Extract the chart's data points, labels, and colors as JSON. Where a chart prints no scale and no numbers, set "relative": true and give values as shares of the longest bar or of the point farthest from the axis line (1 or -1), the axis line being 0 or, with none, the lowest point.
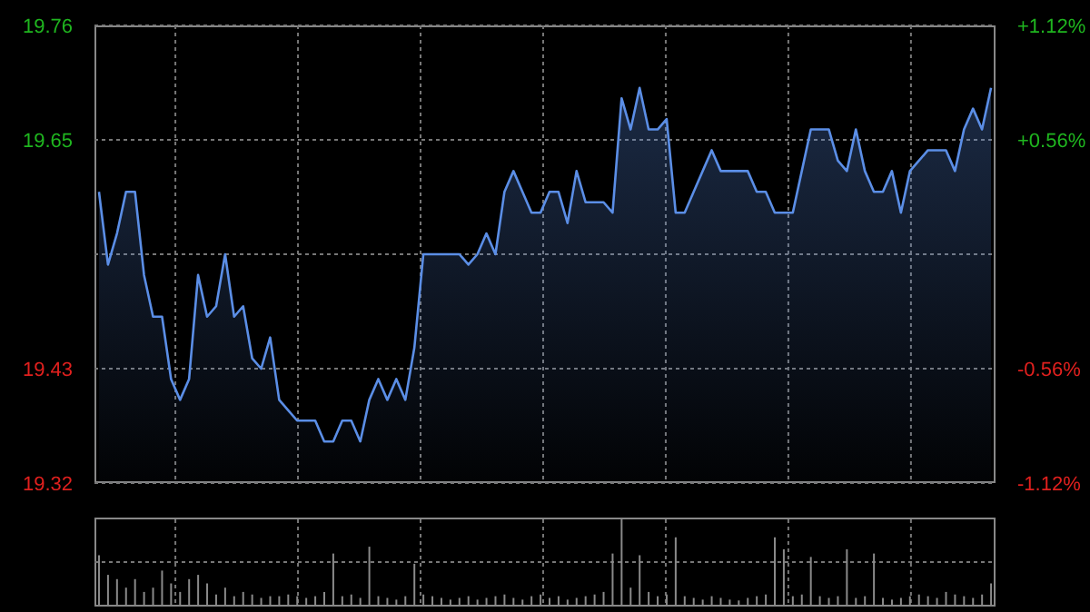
{
  "chart_data": [
    {
      "type": "area",
      "categories": [
        null,
        null,
        null,
        null,
        null,
        null,
        null,
        null,
        null,
        null,
        null,
        null,
        null,
        null,
        null,
        null,
        null,
        null,
        null,
        null,
        null,
        null,
        null,
        null,
        null,
        null,
        null,
        null,
        null,
        null,
        null,
        null,
        null,
        null,
        null,
        null,
        null,
        null,
        null,
        null,
        null,
        null,
        null,
        null,
        null,
        null,
        null,
        null,
        null,
        null,
        null,
        null,
        null,
        null,
        null,
        null,
        null,
        null,
        null,
        null,
        null,
        null,
        null,
        null,
        null,
        null,
        null,
        null,
        null,
        null,
        null,
        null,
        null,
        null,
        null,
        null,
        null,
        null,
        null,
        null,
        null,
        null,
        null,
        null,
        null,
        null,
        null,
        null,
        null,
        null,
        null,
        null,
        null,
        null,
        null,
        null,
        null,
        null,
        null,
        null
      ],
      "series": [
        {
          "color": "#5b8ee6",
          "values": [
            19.6,
            19.53,
            19.56,
            19.6,
            19.6,
            19.52,
            19.48,
            19.48,
            19.42,
            19.4,
            19.42,
            19.52,
            19.48,
            19.49,
            19.54,
            19.48,
            19.49,
            19.44,
            19.43,
            19.46,
            19.4,
            19.39,
            19.38,
            19.38,
            19.38,
            19.36,
            19.36,
            19.38,
            19.38,
            19.36,
            19.4,
            19.42,
            19.4,
            19.42,
            19.4,
            19.45,
            19.54,
            19.54,
            19.54,
            19.54,
            19.54,
            19.53,
            19.54,
            19.56,
            19.54,
            19.6,
            19.62,
            19.6,
            19.58,
            19.58,
            19.6,
            19.6,
            19.57,
            19.62,
            19.59,
            19.59,
            19.59,
            19.58,
            19.69,
            19.66,
            19.7,
            19.66,
            19.66,
            19.67,
            19.58,
            19.58,
            19.6,
            19.62,
            19.64,
            19.62,
            19.62,
            19.62,
            19.62,
            19.6,
            19.6,
            19.58,
            19.58,
            19.58,
            19.62,
            19.66,
            19.66,
            19.66,
            19.63,
            19.62,
            19.66,
            19.62,
            19.6,
            19.6,
            19.62,
            19.58,
            19.62,
            19.63,
            19.64,
            19.64,
            19.64,
            19.62,
            19.66,
            19.68,
            19.66,
            19.7
          ]
        }
      ],
      "ylim": [
        19.32,
        19.76
      ],
      "yticks": [
        19.32,
        19.43,
        {
          "value": 19.54,
          "label": null
        },
        19.65,
        19.76
      ],
      "y2lim": [
        -1.12,
        1.12
      ],
      "y2ticks": [
        {
          "value": -1.12,
          "label": "-1.12%"
        },
        {
          "value": -0.56,
          "label": "-0.56%"
        },
        {
          "value": 0,
          "label": null
        },
        {
          "value": 0.56,
          "label": "+0.56%"
        },
        {
          "value": 1.12,
          "label": "+1.12%"
        }
      ],
      "grid": true
    },
    {
      "type": "bar",
      "relative": true,
      "categories": [
        null,
        null,
        null,
        null,
        null,
        null,
        null,
        null,
        null,
        null,
        null,
        null,
        null,
        null,
        null,
        null,
        null,
        null,
        null,
        null,
        null,
        null,
        null,
        null,
        null,
        null,
        null,
        null,
        null,
        null,
        null,
        null,
        null,
        null,
        null,
        null,
        null,
        null,
        null,
        null,
        null,
        null,
        null,
        null,
        null,
        null,
        null,
        null,
        null,
        null,
        null,
        null,
        null,
        null,
        null,
        null,
        null,
        null,
        null,
        null,
        null,
        null,
        null,
        null,
        null,
        null,
        null,
        null,
        null,
        null,
        null,
        null,
        null,
        null,
        null,
        null,
        null,
        null,
        null,
        null,
        null,
        null,
        null,
        null,
        null,
        null,
        null,
        null,
        null,
        null,
        null,
        null,
        null,
        null,
        null,
        null,
        null,
        null,
        null,
        null
      ],
      "series": [
        {
          "color": "#8a8a8a",
          "values": [
            0.58,
            0.35,
            0.3,
            0.2,
            0.3,
            0.15,
            0.2,
            0.4,
            0.25,
            0.15,
            0.3,
            0.35,
            0.25,
            0.12,
            0.2,
            0.1,
            0.15,
            0.12,
            0.08,
            0.1,
            0.1,
            0.12,
            0.1,
            0.08,
            0.1,
            0.15,
            0.6,
            0.1,
            0.12,
            0.08,
            0.68,
            0.1,
            0.08,
            0.06,
            0.1,
            0.48,
            0.12,
            0.1,
            0.08,
            0.06,
            0.08,
            0.1,
            0.06,
            0.08,
            0.1,
            0.12,
            0.08,
            0.06,
            0.1,
            0.12,
            0.08,
            0.1,
            0.06,
            0.08,
            0.1,
            0.12,
            0.15,
            0.6,
            1,
            0.2,
            0.58,
            0.15,
            0.1,
            0.12,
            0.79,
            0.1,
            0.08,
            0.06,
            0.1,
            0.08,
            0.06,
            0.05,
            0.08,
            0.1,
            0.12,
            0.79,
            0.65,
            0.1,
            0.12,
            0.56,
            0.1,
            0.08,
            0.1,
            0.65,
            0.08,
            0.1,
            0.6,
            0.08,
            0.06,
            0.08,
            0.1,
            0.12,
            0.1,
            0.08,
            0.15,
            0.12,
            0.1,
            0.08,
            0.12,
            0.25
          ]
        }
      ],
      "grid": true
    }
  ]
}
